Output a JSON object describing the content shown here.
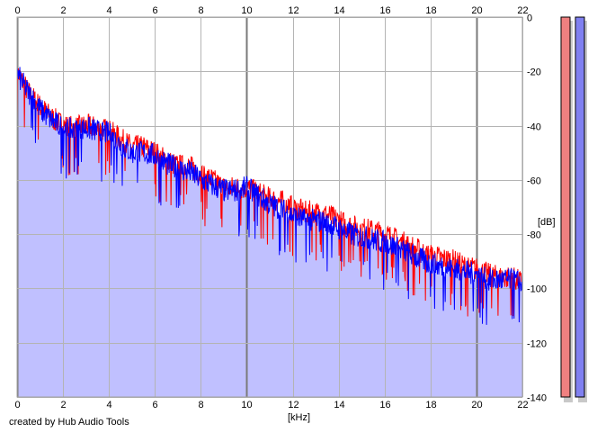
{
  "credit": "created by Hub Audio Tools",
  "colors": {
    "left_channel": "#ff0000",
    "right_channel": "#0000ff",
    "fill": "#c0c0ff",
    "grid_minor": "#b4b4b4",
    "grid_major": "#7a7a7a",
    "meter_left": "#f08080",
    "meter_right": "#8080f0"
  },
  "chart_data": {
    "type": "line",
    "xlabel": "[kHz]",
    "ylabel": "[dB]",
    "xlim": [
      0,
      22
    ],
    "ylim": [
      -140,
      0
    ],
    "x_ticks": [
      0,
      2,
      4,
      6,
      8,
      10,
      12,
      14,
      16,
      18,
      20,
      22
    ],
    "y_ticks": [
      0,
      -20,
      -40,
      -60,
      -80,
      -100,
      -120,
      -140
    ],
    "grid": true,
    "series": [
      {
        "color": "#ff0000",
        "x": [
          0,
          0.5,
          1,
          1.5,
          2,
          2.5,
          3,
          3.5,
          4,
          4.5,
          5,
          5.5,
          6,
          6.5,
          7,
          7.5,
          8,
          8.5,
          9,
          9.5,
          10,
          10.5,
          11,
          11.5,
          12,
          12.5,
          13,
          13.5,
          14,
          14.5,
          15,
          15.5,
          16,
          16.5,
          17,
          17.5,
          18,
          18.5,
          19,
          19.5,
          20,
          20.5,
          21,
          21.5,
          22
        ],
        "values": [
          -20,
          -28,
          -33,
          -37,
          -40,
          -41,
          -40,
          -41,
          -42,
          -45,
          -48,
          -48,
          -50,
          -53,
          -55,
          -55,
          -58,
          -60,
          -63,
          -63,
          -63,
          -65,
          -67,
          -68,
          -70,
          -72,
          -72,
          -73,
          -75,
          -77,
          -78,
          -79,
          -80,
          -82,
          -84,
          -86,
          -88,
          -89,
          -90,
          -92,
          -93,
          -95,
          -96,
          -96,
          -98
        ]
      },
      {
        "color": "#0000ff",
        "x": [
          0,
          0.5,
          1,
          1.5,
          2,
          2.5,
          3,
          3.5,
          4,
          4.5,
          5,
          5.5,
          6,
          6.5,
          7,
          7.5,
          8,
          8.5,
          9,
          9.5,
          10,
          10.5,
          11,
          11.5,
          12,
          12.5,
          13,
          13.5,
          14,
          14.5,
          15,
          15.5,
          16,
          16.5,
          17,
          17.5,
          18,
          18.5,
          19,
          19.5,
          20,
          20.5,
          21,
          21.5,
          22
        ],
        "values": [
          -21,
          -28,
          -34,
          -38,
          -41,
          -42,
          -41,
          -42,
          -43,
          -47,
          -50,
          -50,
          -51,
          -54,
          -56,
          -57,
          -60,
          -62,
          -64,
          -64,
          -63,
          -66,
          -69,
          -71,
          -73,
          -75,
          -75,
          -76,
          -78,
          -80,
          -81,
          -82,
          -83,
          -85,
          -87,
          -89,
          -91,
          -92,
          -93,
          -94,
          -95,
          -97,
          -97,
          -97,
          -98
        ]
      }
    ]
  }
}
